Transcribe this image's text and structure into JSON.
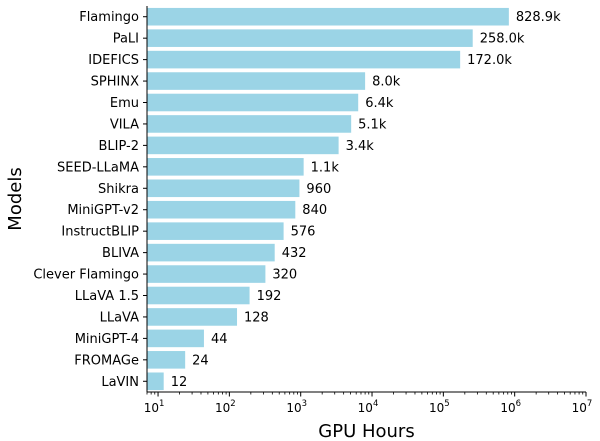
{
  "chart_data": {
    "type": "bar",
    "orientation": "horizontal",
    "xscale": "log",
    "xlim": [
      7,
      10000000
    ],
    "xlabel": "GPU Hours",
    "ylabel": "Models",
    "bar_color": "#9bd4e6",
    "grid": false,
    "categories": [
      "Flamingo",
      "PaLI",
      "IDEFICS",
      "SPHINX",
      "Emu",
      "VILA",
      "BLIP-2",
      "SEED-LLaMA",
      "Shikra",
      "MiniGPT-v2",
      "InstructBLIP",
      "BLIVA",
      "Clever Flamingo",
      "LLaVA 1.5",
      "LLaVA",
      "MiniGPT-4",
      "FROMAGe",
      "LaVIN"
    ],
    "values": [
      828900,
      258000,
      172000,
      8000,
      6400,
      5100,
      3400,
      1100,
      960,
      840,
      576,
      432,
      320,
      192,
      128,
      44,
      24,
      12
    ],
    "value_labels": [
      "828.9k",
      "258.0k",
      "172.0k",
      "8.0k",
      "6.4k",
      "5.1k",
      "3.4k",
      "1.1k",
      "960",
      "840",
      "576",
      "432",
      "320",
      "192",
      "128",
      "44",
      "24",
      "12"
    ],
    "xticks": [
      {
        "value": 10,
        "base": "10",
        "exp": "1"
      },
      {
        "value": 100,
        "base": "10",
        "exp": "2"
      },
      {
        "value": 1000,
        "base": "10",
        "exp": "3"
      },
      {
        "value": 10000,
        "base": "10",
        "exp": "4"
      },
      {
        "value": 100000,
        "base": "10",
        "exp": "5"
      },
      {
        "value": 1000000,
        "base": "10",
        "exp": "6"
      },
      {
        "value": 10000000,
        "base": "10",
        "exp": "7"
      }
    ]
  }
}
